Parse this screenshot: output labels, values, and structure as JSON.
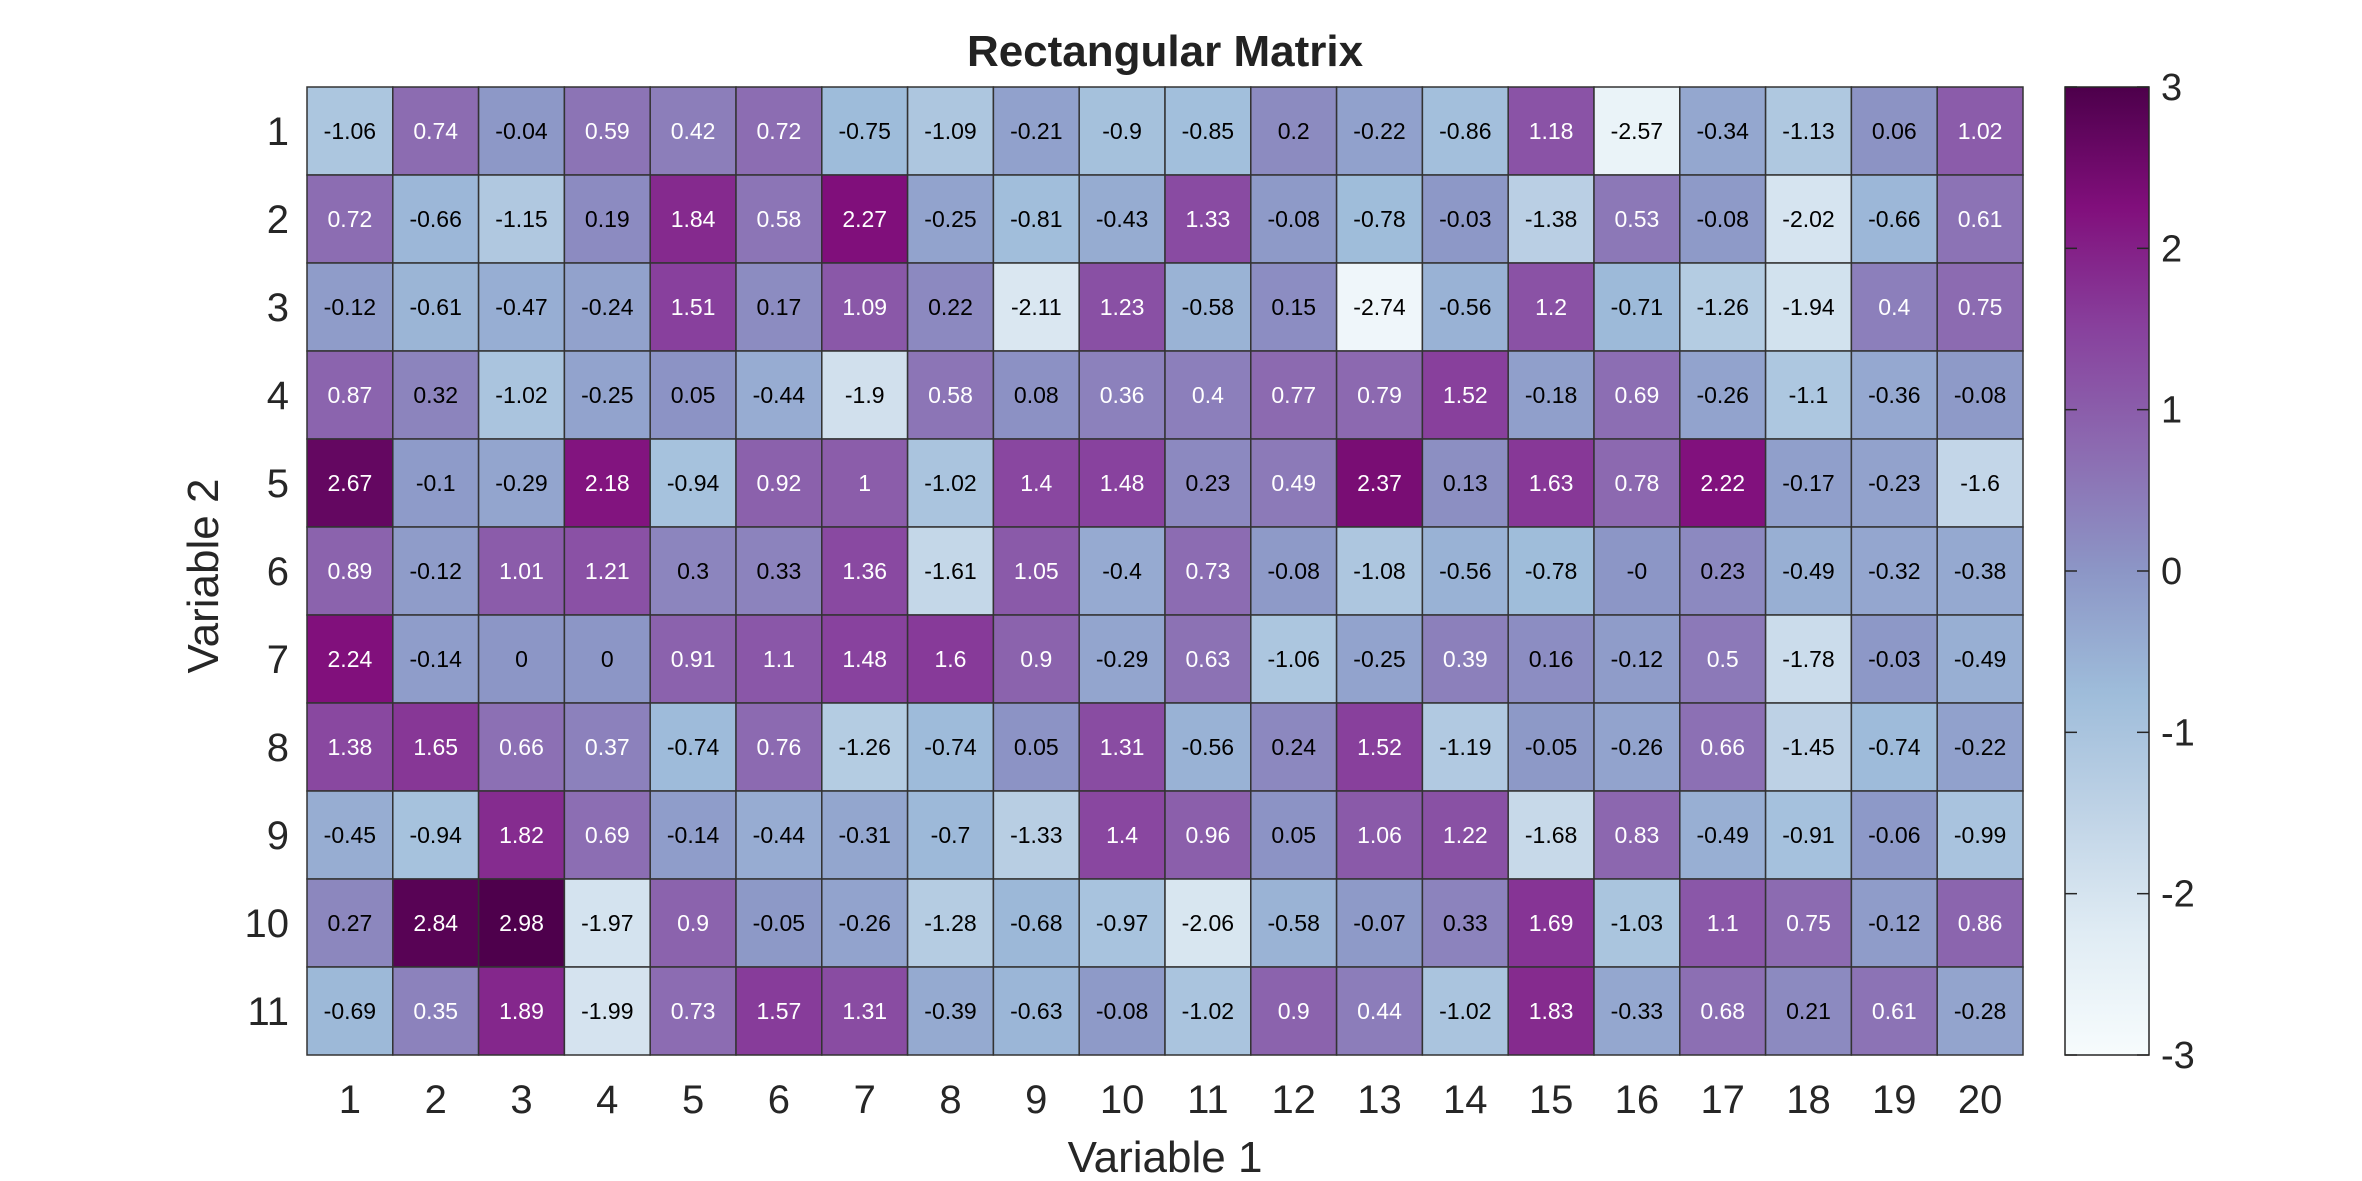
{
  "chart_data": {
    "type": "heatmap",
    "title": "Rectangular Matrix",
    "xlabel": "Variable 1",
    "ylabel": "Variable 2",
    "x_categories": [
      "1",
      "2",
      "3",
      "4",
      "5",
      "6",
      "7",
      "8",
      "9",
      "10",
      "11",
      "12",
      "13",
      "14",
      "15",
      "16",
      "17",
      "18",
      "19",
      "20"
    ],
    "y_categories": [
      "1",
      "2",
      "3",
      "4",
      "5",
      "6",
      "7",
      "8",
      "9",
      "10",
      "11"
    ],
    "values": [
      [
        "-1.06",
        "0.74",
        "-0.04",
        "0.59",
        "0.42",
        "0.72",
        "-0.75",
        "-1.09",
        "-0.21",
        "-0.9",
        "-0.85",
        "0.2",
        "-0.22",
        "-0.86",
        "1.18",
        "-2.57",
        "-0.34",
        "-1.13",
        "0.06",
        "1.02"
      ],
      [
        "0.72",
        "-0.66",
        "-1.15",
        "0.19",
        "1.84",
        "0.58",
        "2.27",
        "-0.25",
        "-0.81",
        "-0.43",
        "1.33",
        "-0.08",
        "-0.78",
        "-0.03",
        "-1.38",
        "0.53",
        "-0.08",
        "-2.02",
        "-0.66",
        "0.61"
      ],
      [
        "-0.12",
        "-0.61",
        "-0.47",
        "-0.24",
        "1.51",
        "0.17",
        "1.09",
        "0.22",
        "-2.11",
        "1.23",
        "-0.58",
        "0.15",
        "-2.74",
        "-0.56",
        "1.2",
        "-0.71",
        "-1.26",
        "-1.94",
        "0.4",
        "0.75"
      ],
      [
        "0.87",
        "0.32",
        "-1.02",
        "-0.25",
        "0.05",
        "-0.44",
        "-1.9",
        "0.58",
        "0.08",
        "0.36",
        "0.4",
        "0.77",
        "0.79",
        "1.52",
        "-0.18",
        "0.69",
        "-0.26",
        "-1.1",
        "-0.36",
        "-0.08"
      ],
      [
        "2.67",
        "-0.1",
        "-0.29",
        "2.18",
        "-0.94",
        "0.92",
        "1",
        "-1.02",
        "1.4",
        "1.48",
        "0.23",
        "0.49",
        "2.37",
        "0.13",
        "1.63",
        "0.78",
        "2.22",
        "-0.17",
        "-0.23",
        "-1.6"
      ],
      [
        "0.89",
        "-0.12",
        "1.01",
        "1.21",
        "0.3",
        "0.33",
        "1.36",
        "-1.61",
        "1.05",
        "-0.4",
        "0.73",
        "-0.08",
        "-1.08",
        "-0.56",
        "-0.78",
        "-0",
        "0.23",
        "-0.49",
        "-0.32",
        "-0.38"
      ],
      [
        "2.24",
        "-0.14",
        "0",
        "0",
        "0.91",
        "1.1",
        "1.48",
        "1.6",
        "0.9",
        "-0.29",
        "0.63",
        "-1.06",
        "-0.25",
        "0.39",
        "0.16",
        "-0.12",
        "0.5",
        "-1.78",
        "-0.03",
        "-0.49"
      ],
      [
        "1.38",
        "1.65",
        "0.66",
        "0.37",
        "-0.74",
        "0.76",
        "-1.26",
        "-0.74",
        "0.05",
        "1.31",
        "-0.56",
        "0.24",
        "1.52",
        "-1.19",
        "-0.05",
        "-0.26",
        "0.66",
        "-1.45",
        "-0.74",
        "-0.22"
      ],
      [
        "-0.45",
        "-0.94",
        "1.82",
        "0.69",
        "-0.14",
        "-0.44",
        "-0.31",
        "-0.7",
        "-1.33",
        "1.4",
        "0.96",
        "0.05",
        "1.06",
        "1.22",
        "-1.68",
        "0.83",
        "-0.49",
        "-0.91",
        "-0.06",
        "-0.99"
      ],
      [
        "0.27",
        "2.84",
        "2.98",
        "-1.97",
        "0.9",
        "-0.05",
        "-0.26",
        "-1.28",
        "-0.68",
        "-0.97",
        "-2.06",
        "-0.58",
        "-0.07",
        "0.33",
        "1.69",
        "-1.03",
        "1.1",
        "0.75",
        "-0.12",
        "0.86"
      ],
      [
        "-0.69",
        "0.35",
        "1.89",
        "-1.99",
        "0.73",
        "1.57",
        "1.31",
        "-0.39",
        "-0.63",
        "-0.08",
        "-1.02",
        "0.9",
        "0.44",
        "-1.02",
        "1.83",
        "-0.33",
        "0.68",
        "0.21",
        "0.61",
        "-0.28"
      ]
    ],
    "colorbar": {
      "limits": [
        -3,
        3
      ],
      "ticks": [
        "3",
        "2",
        "1",
        "0",
        "-1",
        "-2",
        "-3"
      ],
      "colormap": [
        "#f7fcfd",
        "#e0ecf4",
        "#bfd3e6",
        "#9ebcda",
        "#8c96c6",
        "#8c6bb1",
        "#88419d",
        "#810f7c",
        "#4d004b"
      ]
    },
    "grid": true,
    "legend": "colorbar-right"
  }
}
